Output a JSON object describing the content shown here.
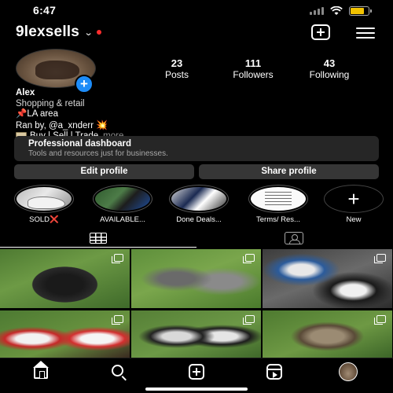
{
  "status_bar": {
    "time": "6:47",
    "battery_level": 0.75,
    "battery_color": "#f2c200"
  },
  "header": {
    "username": "9lexsells",
    "chevron": "⌄",
    "notification_dot_color": "#ff2d2d"
  },
  "profile": {
    "stats": [
      {
        "value": "23",
        "label": "Posts"
      },
      {
        "value": "111",
        "label": "Followers"
      },
      {
        "value": "43",
        "label": "Following"
      }
    ],
    "bio": {
      "name": "Alex",
      "category": "Shopping & retail",
      "line1_emoji": "📌",
      "line1_text": "LA area",
      "line2_text": "Ran by, @a_xnderr",
      "line2_emoji": "💥",
      "line3_text": "Buy | Sell | Trade",
      "more": "more"
    }
  },
  "dashboard": {
    "title": "Professional dashboard",
    "subtitle": "Tools and resources just for businesses."
  },
  "buttons": {
    "edit": "Edit profile",
    "share": "Share profile"
  },
  "highlights": [
    {
      "label": "SOLD",
      "suffix": "❌"
    },
    {
      "label": "AVAILABLE..."
    },
    {
      "label": "Done Deals..."
    },
    {
      "label": "Terms/ Res..."
    },
    {
      "label": "New"
    }
  ],
  "tabs": [
    {
      "icon": "grid-icon"
    },
    {
      "icon": "tagged-icon"
    }
  ],
  "posts": [
    {
      "icon": "carousel-icon"
    },
    {
      "icon": "carousel-icon"
    },
    {
      "icon": "carousel-icon"
    },
    {
      "icon": "carousel-icon"
    },
    {
      "icon": "carousel-icon"
    },
    {
      "icon": "carousel-icon"
    }
  ],
  "bottom_nav": [
    "home-icon",
    "search-icon",
    "create-icon",
    "reels-icon",
    "profile-icon"
  ],
  "colors": {
    "accent_blue": "#1d8cf8",
    "background": "#000000",
    "button_bg": "#363636",
    "dashboard_bg": "#262626"
  }
}
